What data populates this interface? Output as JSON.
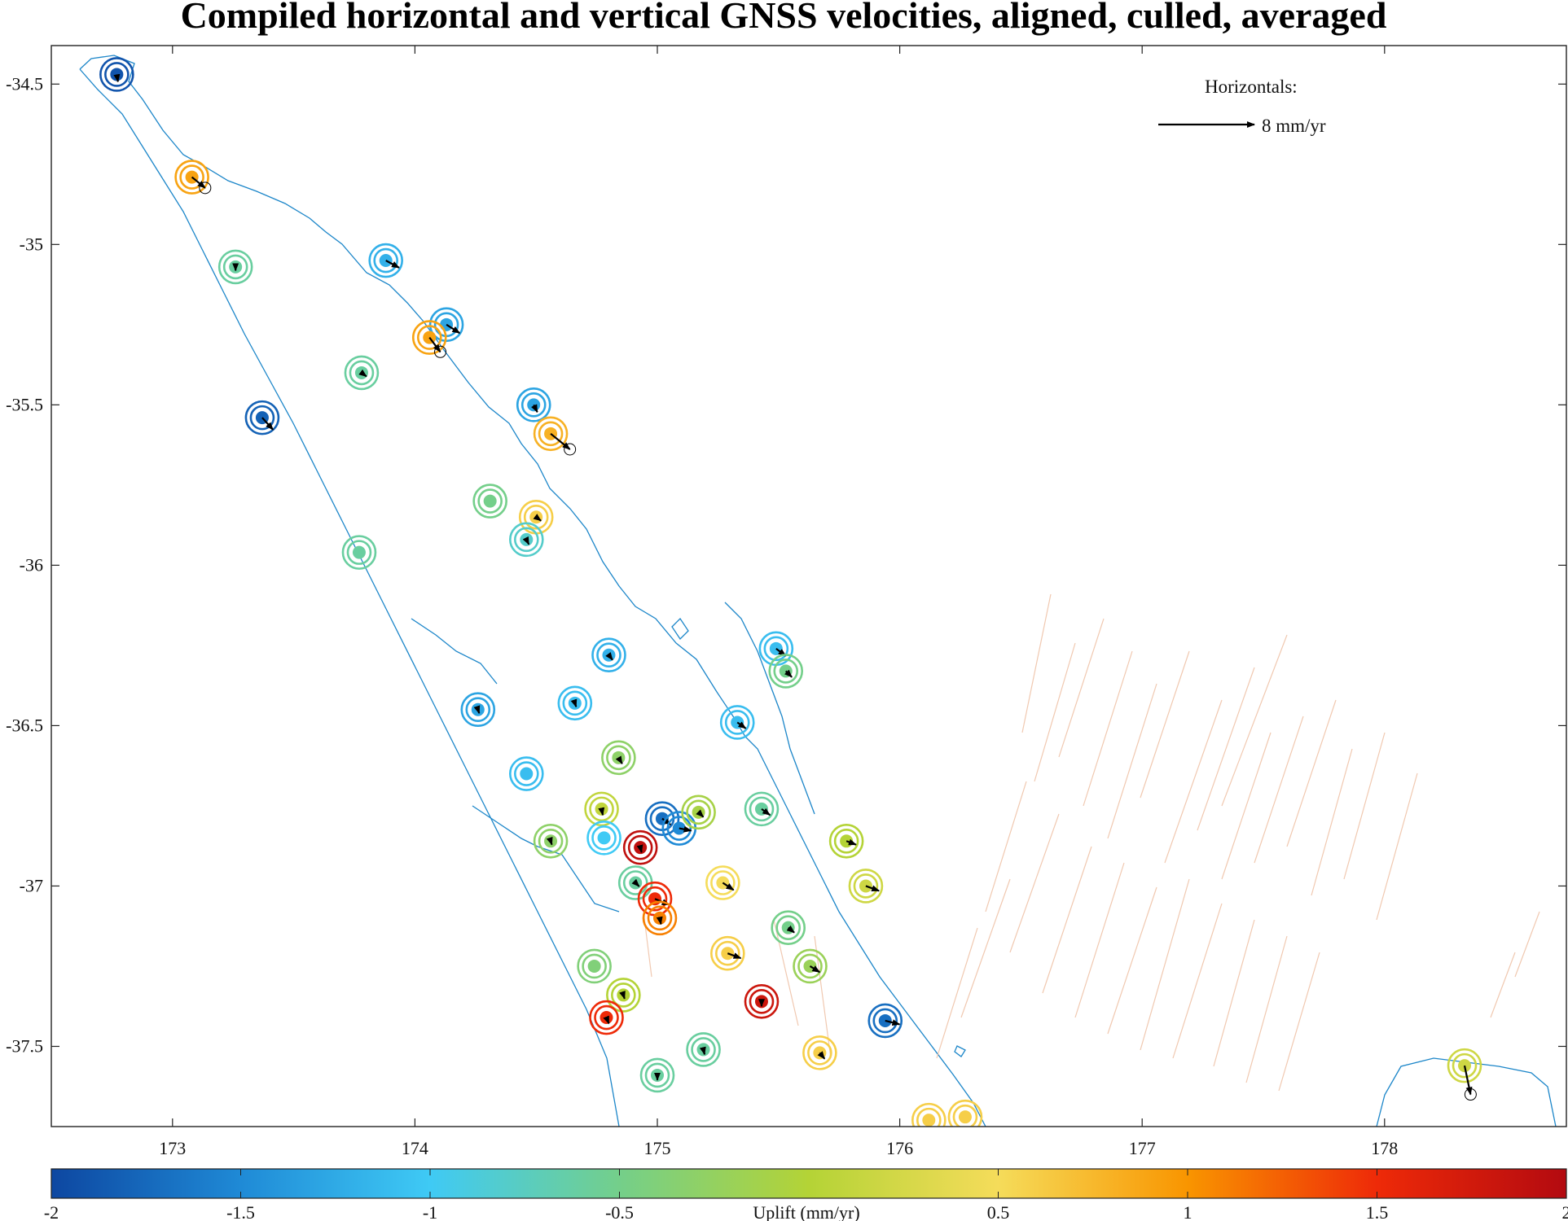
{
  "chart_data": {
    "type": "scatter",
    "title": "Compiled horizontal and vertical GNSS velocities, aligned, culled, averaged",
    "xlim": [
      172.5,
      178.75
    ],
    "ylim": [
      -37.75,
      -34.38
    ],
    "xticks": [
      173,
      174,
      175,
      176,
      177,
      178
    ],
    "xtick_labels": [
      "173",
      "174",
      "175",
      "176",
      "177",
      "178"
    ],
    "yticks": [
      -34.5,
      -35,
      -35.5,
      -36,
      -36.5,
      -37,
      -37.5
    ],
    "ytick_labels": [
      "-34.5",
      "-35",
      "-35.5",
      "-36",
      "-36.5",
      "-37",
      "-37.5"
    ],
    "grid": false,
    "legend": {
      "title": "Horizontals:",
      "label": "8 mm/yr",
      "placement": "top-right"
    },
    "colorbar": {
      "label": "Uplift (mm/yr)",
      "range": [
        -2,
        2
      ],
      "ticks": [
        -2,
        -1.5,
        -1,
        -0.5,
        0.5,
        1,
        1.5,
        2
      ],
      "tick_labels": [
        "-2",
        "-1.5",
        "-1",
        "-0.5",
        "0.5",
        "1",
        "1.5",
        "2"
      ],
      "colormap": [
        "#0d47a1",
        "#1f8ad6",
        "#3fcaf5",
        "#74cf8a",
        "#b4d336",
        "#f5dc5a",
        "#f99500",
        "#ee2a08",
        "#b30a10"
      ],
      "placement": "bottom"
    },
    "stations": [
      {
        "lon": 172.77,
        "lat": -34.47,
        "uplift": -1.9,
        "ve": 0.1,
        "vn": -0.6
      },
      {
        "lon": 173.08,
        "lat": -34.79,
        "uplift": 0.9,
        "ve": 1.1,
        "vn": -0.9
      },
      {
        "lon": 173.26,
        "lat": -35.07,
        "uplift": -0.6,
        "ve": 0.0,
        "vn": -0.3
      },
      {
        "lon": 173.88,
        "lat": -35.05,
        "uplift": -1.2,
        "ve": 1.1,
        "vn": -0.6
      },
      {
        "lon": 174.13,
        "lat": -35.25,
        "uplift": -1.3,
        "ve": 1.1,
        "vn": -0.7
      },
      {
        "lon": 174.06,
        "lat": -35.29,
        "uplift": 0.9,
        "ve": 0.9,
        "vn": -1.2
      },
      {
        "lon": 173.78,
        "lat": -35.4,
        "uplift": -0.6,
        "ve": 0.4,
        "vn": -0.3
      },
      {
        "lon": 173.37,
        "lat": -35.54,
        "uplift": -1.8,
        "ve": 0.9,
        "vn": -1.0
      },
      {
        "lon": 174.49,
        "lat": -35.5,
        "uplift": -1.3,
        "ve": 0.3,
        "vn": -0.6
      },
      {
        "lon": 174.56,
        "lat": -35.59,
        "uplift": 0.8,
        "ve": 1.6,
        "vn": -1.3
      },
      {
        "lon": 174.31,
        "lat": -35.8,
        "uplift": -0.5,
        "ve": 0.1,
        "vn": -0.2
      },
      {
        "lon": 174.5,
        "lat": -35.85,
        "uplift": 0.6,
        "ve": 0.4,
        "vn": -0.3
      },
      {
        "lon": 174.46,
        "lat": -35.92,
        "uplift": -0.8,
        "ve": 0.2,
        "vn": -0.4
      },
      {
        "lon": 173.77,
        "lat": -35.96,
        "uplift": -0.6,
        "ve": 0.0,
        "vn": -0.2
      },
      {
        "lon": 174.8,
        "lat": -36.28,
        "uplift": -1.2,
        "ve": 0.3,
        "vn": -0.4
      },
      {
        "lon": 175.49,
        "lat": -36.26,
        "uplift": -1.1,
        "ve": 0.8,
        "vn": -0.6
      },
      {
        "lon": 175.53,
        "lat": -36.33,
        "uplift": -0.5,
        "ve": 0.5,
        "vn": -0.5
      },
      {
        "lon": 174.26,
        "lat": -36.45,
        "uplift": -1.3,
        "ve": 0.1,
        "vn": -0.3
      },
      {
        "lon": 174.66,
        "lat": -36.43,
        "uplift": -1.1,
        "ve": 0.1,
        "vn": -0.3
      },
      {
        "lon": 175.33,
        "lat": -36.49,
        "uplift": -1.1,
        "ve": 0.7,
        "vn": -0.5
      },
      {
        "lon": 174.84,
        "lat": -36.6,
        "uplift": -0.3,
        "ve": 0.3,
        "vn": -0.5
      },
      {
        "lon": 174.46,
        "lat": -36.65,
        "uplift": -1.1,
        "ve": 0.0,
        "vn": 0.0
      },
      {
        "lon": 174.77,
        "lat": -36.76,
        "uplift": 0.1,
        "ve": 0.1,
        "vn": -0.5
      },
      {
        "lon": 175.02,
        "lat": -36.79,
        "uplift": -1.7,
        "ve": 0.7,
        "vn": -0.5
      },
      {
        "lon": 175.09,
        "lat": -36.82,
        "uplift": -1.5,
        "ve": 1.0,
        "vn": -0.2
      },
      {
        "lon": 175.17,
        "lat": -36.77,
        "uplift": -0.1,
        "ve": 0.4,
        "vn": -0.4
      },
      {
        "lon": 175.43,
        "lat": -36.76,
        "uplift": -0.6,
        "ve": 0.7,
        "vn": -0.5
      },
      {
        "lon": 174.78,
        "lat": -36.85,
        "uplift": -1.0,
        "ve": 0.1,
        "vn": -0.2
      },
      {
        "lon": 174.56,
        "lat": -36.86,
        "uplift": -0.3,
        "ve": 0.1,
        "vn": -0.3
      },
      {
        "lon": 174.93,
        "lat": -36.88,
        "uplift": 1.9,
        "ve": 0.1,
        "vn": -0.4
      },
      {
        "lon": 175.78,
        "lat": -36.86,
        "uplift": 0.0,
        "ve": 0.8,
        "vn": -0.3
      },
      {
        "lon": 174.91,
        "lat": -36.99,
        "uplift": -0.6,
        "ve": 0.3,
        "vn": -0.3
      },
      {
        "lon": 175.27,
        "lat": -36.99,
        "uplift": 0.5,
        "ve": 0.9,
        "vn": -0.6
      },
      {
        "lon": 175.86,
        "lat": -37.0,
        "uplift": 0.2,
        "ve": 1.1,
        "vn": -0.4
      },
      {
        "lon": 174.99,
        "lat": -37.04,
        "uplift": 1.5,
        "ve": 1.2,
        "vn": -0.5
      },
      {
        "lon": 175.01,
        "lat": -37.1,
        "uplift": 1.1,
        "ve": 0.1,
        "vn": -0.5
      },
      {
        "lon": 175.54,
        "lat": -37.13,
        "uplift": -0.5,
        "ve": 0.5,
        "vn": -0.4
      },
      {
        "lon": 175.29,
        "lat": -37.21,
        "uplift": 0.6,
        "ve": 1.1,
        "vn": -0.4
      },
      {
        "lon": 174.74,
        "lat": -37.25,
        "uplift": -0.4,
        "ve": 0.0,
        "vn": 0.0
      },
      {
        "lon": 175.63,
        "lat": -37.25,
        "uplift": -0.2,
        "ve": 0.8,
        "vn": -0.5
      },
      {
        "lon": 174.86,
        "lat": -37.34,
        "uplift": 0.0,
        "ve": 0.1,
        "vn": -0.3
      },
      {
        "lon": 175.43,
        "lat": -37.36,
        "uplift": 1.8,
        "ve": 0.0,
        "vn": -0.4
      },
      {
        "lon": 174.79,
        "lat": -37.41,
        "uplift": 1.5,
        "ve": 0.2,
        "vn": -0.5
      },
      {
        "lon": 175.94,
        "lat": -37.42,
        "uplift": -1.7,
        "ve": 1.2,
        "vn": -0.3
      },
      {
        "lon": 175.19,
        "lat": -37.51,
        "uplift": -0.6,
        "ve": 0.1,
        "vn": -0.4
      },
      {
        "lon": 175.67,
        "lat": -37.52,
        "uplift": 0.6,
        "ve": 0.4,
        "vn": -0.5
      },
      {
        "lon": 175.0,
        "lat": -37.59,
        "uplift": -0.6,
        "ve": 0.0,
        "vn": -0.4
      },
      {
        "lon": 176.12,
        "lat": -37.73,
        "uplift": 0.6,
        "ve": 0.1,
        "vn": -0.2
      },
      {
        "lon": 176.27,
        "lat": -37.72,
        "uplift": 0.6,
        "ve": 0.1,
        "vn": -0.2
      },
      {
        "lon": 178.33,
        "lat": -37.56,
        "uplift": 0.2,
        "ve": 0.5,
        "vn": -2.4
      }
    ]
  }
}
